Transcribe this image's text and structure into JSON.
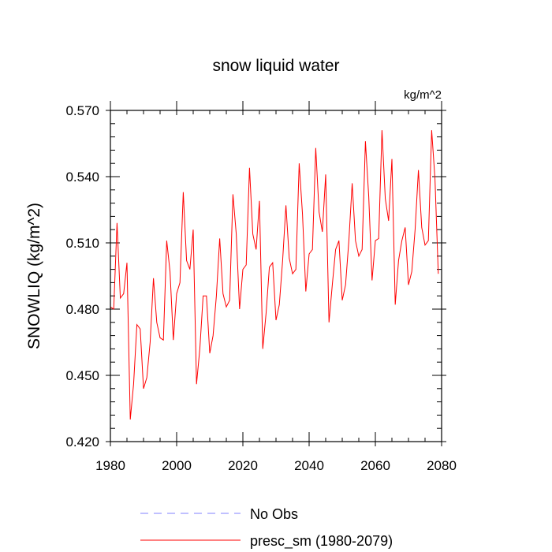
{
  "chart_data": {
    "type": "line",
    "title": "snow liquid water",
    "units": "kg/m^2",
    "xlabel": "",
    "ylabel": "SNOWLIQ  (kg/m^2)",
    "xlim": [
      1980,
      2080
    ],
    "ylim": [
      0.42,
      0.57
    ],
    "xticks": [
      1980,
      2000,
      2020,
      2040,
      2060,
      2080
    ],
    "xtick_labels": [
      "1980",
      "2000",
      "2020",
      "2040",
      "2060",
      "2080"
    ],
    "yticks": [
      0.42,
      0.45,
      0.48,
      0.51,
      0.54,
      0.57
    ],
    "ytick_labels": [
      "0.420",
      "0.450",
      "0.480",
      "0.510",
      "0.540",
      "0.570"
    ],
    "grid": false,
    "legend_position": "bottom",
    "series": [
      {
        "name": "No Obs",
        "color": "#8080ff",
        "dashed": true,
        "x": [],
        "values": []
      },
      {
        "name": "presc_sm (1980-2079)",
        "color": "#ff0000",
        "dashed": false,
        "x": [
          1980,
          1981,
          1982,
          1983,
          1984,
          1985,
          1986,
          1987,
          1988,
          1989,
          1990,
          1991,
          1992,
          1993,
          1994,
          1995,
          1996,
          1997,
          1998,
          1999,
          2000,
          2001,
          2002,
          2003,
          2004,
          2005,
          2006,
          2007,
          2008,
          2009,
          2010,
          2011,
          2012,
          2013,
          2014,
          2015,
          2016,
          2017,
          2018,
          2019,
          2020,
          2021,
          2022,
          2023,
          2024,
          2025,
          2026,
          2027,
          2028,
          2029,
          2030,
          2031,
          2032,
          2033,
          2034,
          2035,
          2036,
          2037,
          2038,
          2039,
          2040,
          2041,
          2042,
          2043,
          2044,
          2045,
          2046,
          2047,
          2048,
          2049,
          2050,
          2051,
          2052,
          2053,
          2054,
          2055,
          2056,
          2057,
          2058,
          2059,
          2060,
          2061,
          2062,
          2063,
          2064,
          2065,
          2066,
          2067,
          2068,
          2069,
          2070,
          2071,
          2072,
          2073,
          2074,
          2075,
          2076,
          2077,
          2078,
          2079
        ],
        "values": [
          0.481,
          0.48,
          0.519,
          0.485,
          0.487,
          0.501,
          0.43,
          0.446,
          0.473,
          0.471,
          0.444,
          0.449,
          0.465,
          0.494,
          0.474,
          0.467,
          0.466,
          0.511,
          0.497,
          0.466,
          0.487,
          0.492,
          0.533,
          0.502,
          0.498,
          0.516,
          0.446,
          0.462,
          0.486,
          0.486,
          0.46,
          0.468,
          0.486,
          0.512,
          0.487,
          0.481,
          0.484,
          0.532,
          0.514,
          0.48,
          0.498,
          0.5,
          0.544,
          0.514,
          0.507,
          0.529,
          0.462,
          0.478,
          0.499,
          0.501,
          0.475,
          0.482,
          0.502,
          0.527,
          0.503,
          0.496,
          0.498,
          0.546,
          0.523,
          0.488,
          0.505,
          0.507,
          0.553,
          0.524,
          0.515,
          0.541,
          0.474,
          0.491,
          0.507,
          0.511,
          0.484,
          0.491,
          0.511,
          0.537,
          0.511,
          0.504,
          0.507,
          0.556,
          0.531,
          0.493,
          0.511,
          0.512,
          0.561,
          0.53,
          0.52,
          0.548,
          0.482,
          0.502,
          0.511,
          0.517,
          0.491,
          0.497,
          0.516,
          0.543,
          0.517,
          0.509,
          0.511,
          0.561,
          0.539,
          0.496
        ]
      }
    ]
  }
}
